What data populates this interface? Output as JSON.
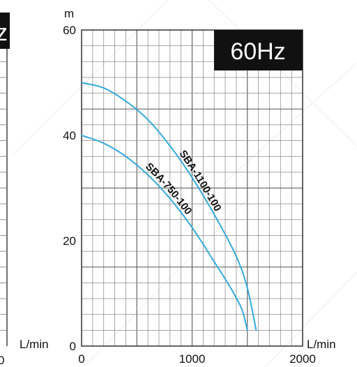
{
  "badge": {
    "text": "60Hz"
  },
  "left_fragment": {
    "unit_label": "L/min",
    "tick_label": "0",
    "badge_fragment": "z"
  },
  "chart_data": {
    "type": "line",
    "title": "",
    "xlabel": "L/min",
    "ylabel": "m",
    "xlim": [
      0,
      2000
    ],
    "ylim": [
      0,
      60
    ],
    "x_ticks": [
      "0",
      "1000",
      "2000"
    ],
    "y_ticks": [
      "0",
      "20",
      "40",
      "60"
    ],
    "grid": true,
    "series": [
      {
        "name": "SBA-1100-100",
        "color": "#35a9dc",
        "x": [
          0,
          200,
          400,
          600,
          800,
          1000,
          1200,
          1400,
          1500,
          1580
        ],
        "y": [
          50,
          49,
          46.5,
          43,
          38,
          32,
          25,
          17,
          11,
          3
        ]
      },
      {
        "name": "SBA-750-100",
        "color": "#35a9dc",
        "x": [
          0,
          200,
          400,
          600,
          800,
          1000,
          1200,
          1350,
          1450,
          1500
        ],
        "y": [
          40,
          38.5,
          36,
          32.5,
          28,
          22.5,
          16,
          11,
          7,
          3
        ]
      }
    ]
  }
}
